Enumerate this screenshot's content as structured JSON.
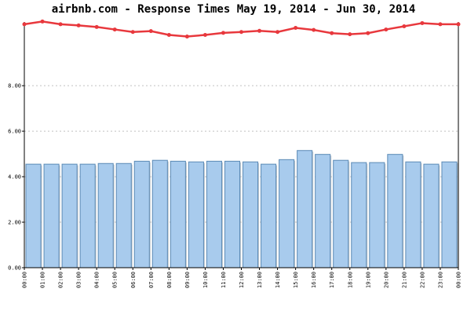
{
  "chart_data": {
    "type": "bar",
    "title": "airbnb.com - Response Times May 19, 2014 - Jun 30, 2014",
    "xlabel": "",
    "ylabel": "",
    "categories": [
      "00:00",
      "01:00",
      "02:00",
      "03:00",
      "04:00",
      "05:00",
      "06:00",
      "07:00",
      "08:00",
      "09:00",
      "10:00",
      "11:00",
      "12:00",
      "13:00",
      "14:00",
      "15:00",
      "16:00",
      "17:00",
      "18:00",
      "19:00",
      "20:00",
      "21:00",
      "22:00",
      "23:00"
    ],
    "x_tick_labels": [
      "00:00",
      "01:00",
      "02:00",
      "03:00",
      "04:00",
      "05:00",
      "06:00",
      "07:00",
      "08:00",
      "09:00",
      "10:00",
      "11:00",
      "12:00",
      "13:00",
      "14:00",
      "15:00",
      "16:00",
      "17:00",
      "18:00",
      "19:00",
      "20:00",
      "21:00",
      "22:00",
      "23:00",
      "00:00"
    ],
    "y_tick_labels": [
      "0.00",
      "2.00",
      "4.00",
      "6.00",
      "8.00"
    ],
    "y_ticks": [
      0,
      2,
      4,
      6,
      8
    ],
    "ylim": [
      0,
      10.8
    ],
    "grid": true,
    "legend": "none",
    "series": [
      {
        "type": "bar",
        "values": [
          4.55,
          4.55,
          4.55,
          4.55,
          4.58,
          4.58,
          4.68,
          4.72,
          4.68,
          4.65,
          4.68,
          4.68,
          4.65,
          4.55,
          4.75,
          5.15,
          4.98,
          4.72,
          4.62,
          4.62,
          4.98,
          4.65,
          4.55,
          4.65
        ],
        "color": "#a8cbed",
        "edge_color": "#5b8ab5"
      },
      {
        "type": "line",
        "x": [
          -0.5,
          0.5,
          1.5,
          2.5,
          3.5,
          4.5,
          5.5,
          6.5,
          7.5,
          8.5,
          9.5,
          10.5,
          11.5,
          12.5,
          13.5,
          14.5,
          15.5,
          16.5,
          17.5,
          18.5,
          19.5,
          20.5,
          21.5,
          22.5,
          23.5
        ],
        "values": [
          10.7,
          10.82,
          10.7,
          10.65,
          10.58,
          10.47,
          10.36,
          10.4,
          10.23,
          10.16,
          10.23,
          10.32,
          10.36,
          10.41,
          10.36,
          10.54,
          10.45,
          10.31,
          10.26,
          10.31,
          10.47,
          10.61,
          10.75,
          10.7,
          10.7
        ],
        "color": "#e8383d"
      }
    ]
  }
}
